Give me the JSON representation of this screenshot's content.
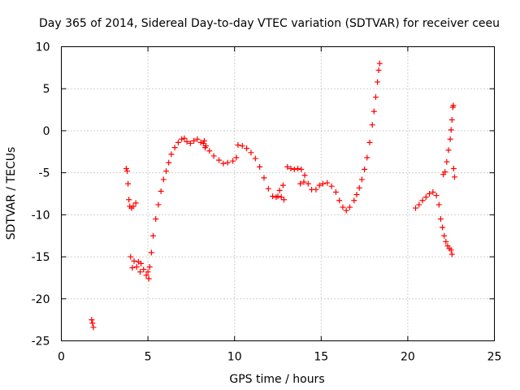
{
  "chart_data": {
    "type": "scatter",
    "title": "Day 365 of 2014, Sidereal Day-to-day VTEC variation (SDTVAR) for receiver ceeu",
    "xlabel": "GPS time / hours",
    "ylabel": "SDTVAR / TECUs",
    "xlim": [
      0,
      25
    ],
    "ylim": [
      -25,
      10
    ],
    "xticks": [
      0,
      5,
      10,
      15,
      20,
      25
    ],
    "yticks": [
      -25,
      -20,
      -15,
      -10,
      -5,
      0,
      5,
      10
    ],
    "grid": true,
    "marker": "+",
    "color": "#ff0000",
    "series": [
      {
        "name": "SDTVAR",
        "points": [
          [
            1.75,
            -22.5
          ],
          [
            1.8,
            -22.9
          ],
          [
            1.85,
            -23.4
          ],
          [
            3.75,
            -4.5
          ],
          [
            3.8,
            -4.8
          ],
          [
            3.85,
            -6.3
          ],
          [
            3.9,
            -8.2
          ],
          [
            3.95,
            -9.0
          ],
          [
            4.05,
            -9.2
          ],
          [
            4.15,
            -9.0
          ],
          [
            4.3,
            -8.6
          ],
          [
            4.0,
            -15.0
          ],
          [
            4.1,
            -16.3
          ],
          [
            4.2,
            -15.5
          ],
          [
            4.35,
            -16.2
          ],
          [
            4.45,
            -15.6
          ],
          [
            4.55,
            -16.8
          ],
          [
            4.6,
            -15.8
          ],
          [
            4.75,
            -16.5
          ],
          [
            4.9,
            -17.2
          ],
          [
            5.0,
            -16.8
          ],
          [
            5.05,
            -17.6
          ],
          [
            5.1,
            -16.2
          ],
          [
            5.2,
            -14.5
          ],
          [
            5.3,
            -12.5
          ],
          [
            5.45,
            -10.5
          ],
          [
            5.6,
            -8.8
          ],
          [
            5.75,
            -7.2
          ],
          [
            5.9,
            -5.8
          ],
          [
            6.05,
            -4.8
          ],
          [
            6.2,
            -3.8
          ],
          [
            6.35,
            -2.8
          ],
          [
            6.55,
            -2.0
          ],
          [
            6.75,
            -1.4
          ],
          [
            6.95,
            -1.0
          ],
          [
            7.1,
            -0.9
          ],
          [
            7.25,
            -1.3
          ],
          [
            7.45,
            -1.5
          ],
          [
            7.65,
            -1.2
          ],
          [
            7.85,
            -1.0
          ],
          [
            8.05,
            -1.4
          ],
          [
            8.25,
            -1.2
          ],
          [
            8.35,
            -1.8
          ],
          [
            8.55,
            -2.4
          ],
          [
            8.8,
            -3.0
          ],
          [
            9.1,
            -3.5
          ],
          [
            9.35,
            -3.9
          ],
          [
            9.6,
            -3.8
          ],
          [
            9.9,
            -3.6
          ],
          [
            10.1,
            -3.2
          ],
          [
            8.2,
            -1.5
          ],
          [
            8.3,
            -2.0
          ],
          [
            10.2,
            -1.7
          ],
          [
            10.45,
            -1.8
          ],
          [
            10.7,
            -2.1
          ],
          [
            10.95,
            -2.6
          ],
          [
            11.2,
            -3.3
          ],
          [
            11.45,
            -4.3
          ],
          [
            11.7,
            -5.6
          ],
          [
            11.95,
            -6.9
          ],
          [
            12.2,
            -7.8
          ],
          [
            12.4,
            -7.9
          ],
          [
            12.6,
            -7.1
          ],
          [
            12.8,
            -6.5
          ],
          [
            12.5,
            -7.8
          ],
          [
            12.7,
            -7.9
          ],
          [
            12.85,
            -8.2
          ],
          [
            13.05,
            -4.3
          ],
          [
            13.25,
            -4.5
          ],
          [
            13.45,
            -4.6
          ],
          [
            13.65,
            -4.5
          ],
          [
            13.85,
            -4.6
          ],
          [
            14.05,
            -5.3
          ],
          [
            14.25,
            -6.3
          ],
          [
            14.45,
            -7.0
          ],
          [
            14.7,
            -7.0
          ],
          [
            14.9,
            -6.5
          ],
          [
            15.1,
            -6.3
          ],
          [
            15.35,
            -6.2
          ],
          [
            15.6,
            -6.6
          ],
          [
            15.85,
            -7.3
          ],
          [
            16.05,
            -8.3
          ],
          [
            16.25,
            -9.1
          ],
          [
            16.45,
            -9.5
          ],
          [
            16.65,
            -9.1
          ],
          [
            16.9,
            -8.3
          ],
          [
            13.8,
            -6.3
          ],
          [
            14.0,
            -6.1
          ],
          [
            17.05,
            -7.6
          ],
          [
            17.2,
            -6.8
          ],
          [
            17.35,
            -5.8
          ],
          [
            17.5,
            -4.6
          ],
          [
            17.65,
            -3.2
          ],
          [
            17.8,
            -1.4
          ],
          [
            17.95,
            0.7
          ],
          [
            18.05,
            2.3
          ],
          [
            18.15,
            4.0
          ],
          [
            18.25,
            5.8
          ],
          [
            18.32,
            7.2
          ],
          [
            18.38,
            8.0
          ],
          [
            20.45,
            -9.2
          ],
          [
            20.65,
            -8.8
          ],
          [
            20.85,
            -8.3
          ],
          [
            21.05,
            -7.9
          ],
          [
            21.25,
            -7.5
          ],
          [
            21.45,
            -7.3
          ],
          [
            21.65,
            -7.7
          ],
          [
            21.8,
            -8.8
          ],
          [
            21.9,
            -10.5
          ],
          [
            22.0,
            -11.5
          ],
          [
            22.1,
            -12.5
          ],
          [
            22.2,
            -13.2
          ],
          [
            22.3,
            -13.7
          ],
          [
            22.4,
            -14.0
          ],
          [
            22.5,
            -14.2
          ],
          [
            22.55,
            -14.7
          ],
          [
            22.05,
            -5.2
          ],
          [
            22.15,
            -4.9
          ],
          [
            22.25,
            -3.7
          ],
          [
            22.35,
            -2.3
          ],
          [
            22.45,
            -1.0
          ],
          [
            22.5,
            0.1
          ],
          [
            22.55,
            1.3
          ],
          [
            22.6,
            2.8
          ],
          [
            22.63,
            3.0
          ],
          [
            22.65,
            -4.5
          ],
          [
            22.7,
            -5.5
          ]
        ]
      }
    ]
  }
}
